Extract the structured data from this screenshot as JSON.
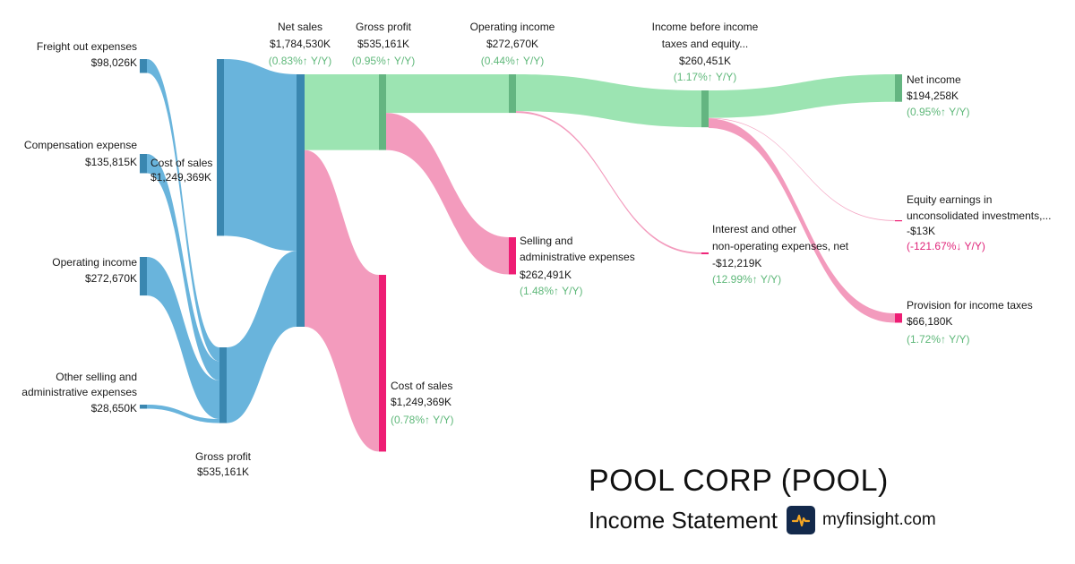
{
  "header": {
    "company": "POOL CORP (POOL)",
    "statement": "Income Statement",
    "brand": "myfinsight.com",
    "brand_icon": "pulse-line-icon"
  },
  "colors": {
    "revenue_blue": "#69b4dc",
    "revenue_blue_dark": "#3a87b0",
    "profit_green": "#9ce4b2",
    "profit_green_dark": "#64b581",
    "cost_pink": "#f39bbd",
    "cost_pink_dark": "#ee1d74",
    "yoy_up": "#5fb87a",
    "yoy_down": "#e0257a"
  },
  "chart_data": {
    "type": "sankey",
    "units": "USD thousands",
    "nodes": [
      {
        "id": "freight",
        "name": "Freight out expenses",
        "value_label": "$98,026K",
        "value": 98026
      },
      {
        "id": "comp",
        "name": "Compensation expense",
        "value_label": "$135,815K",
        "value": 135815
      },
      {
        "id": "opinc_in",
        "name": "Operating income",
        "value_label": "$272,670K",
        "value": 272670
      },
      {
        "id": "osga_in",
        "name": "Other selling and administrative expenses",
        "value_label": "$28,650K",
        "value": 28650
      },
      {
        "id": "cos_in",
        "name": "Cost of sales",
        "value_label": "$1,249,369K",
        "value": 1249369
      },
      {
        "id": "gp_in",
        "name": "Gross profit",
        "value_label": "$535,161K",
        "value": 535161
      },
      {
        "id": "netsales",
        "name": "Net sales",
        "value_label": "$1,784,530K",
        "value": 1784530,
        "yoy": "(0.83%↑ Y/Y)",
        "yoy_dir": "up"
      },
      {
        "id": "gp",
        "name": "Gross profit",
        "value_label": "$535,161K",
        "value": 535161,
        "yoy": "(0.95%↑ Y/Y)",
        "yoy_dir": "up"
      },
      {
        "id": "cos",
        "name": "Cost of sales",
        "value_label": "$1,249,369K",
        "value": 1249369,
        "yoy": "(0.78%↑ Y/Y)",
        "yoy_dir": "up"
      },
      {
        "id": "opinc",
        "name": "Operating income",
        "value_label": "$272,670K",
        "value": 272670,
        "yoy": "(0.44%↑ Y/Y)",
        "yoy_dir": "up"
      },
      {
        "id": "sga",
        "name": "Selling and administrative expenses",
        "value_label": "$262,491K",
        "value": 262491,
        "yoy": "(1.48%↑ Y/Y)",
        "yoy_dir": "up"
      },
      {
        "id": "ibt",
        "name": "Income before income taxes and equity...",
        "value_label": "$260,451K",
        "value": 260451,
        "yoy": "(1.17%↑ Y/Y)",
        "yoy_dir": "up"
      },
      {
        "id": "interest",
        "name": "Interest and other non-operating expenses, net",
        "value_label": "-$12,219K",
        "value": -12219,
        "yoy": "(12.99%↑ Y/Y)",
        "yoy_dir": "up"
      },
      {
        "id": "netinc",
        "name": "Net income",
        "value_label": "$194,258K",
        "value": 194258,
        "yoy": "(0.95%↑ Y/Y)",
        "yoy_dir": "up"
      },
      {
        "id": "equity",
        "name": "Equity earnings in unconsolidated investments,...",
        "value_label": "-$13K",
        "value": -13,
        "yoy": "(-121.67%↓ Y/Y)",
        "yoy_dir": "down"
      },
      {
        "id": "tax",
        "name": "Provision for income taxes",
        "value_label": "$66,180K",
        "value": 66180,
        "yoy": "(1.72%↑ Y/Y)",
        "yoy_dir": "up"
      }
    ],
    "links": [
      {
        "source": "freight",
        "target": "gp_in",
        "value": 98026
      },
      {
        "source": "comp",
        "target": "gp_in",
        "value": 135815
      },
      {
        "source": "opinc_in",
        "target": "gp_in",
        "value": 272670
      },
      {
        "source": "osga_in",
        "target": "gp_in",
        "value": 28650
      },
      {
        "source": "cos_in",
        "target": "netsales",
        "value": 1249369
      },
      {
        "source": "gp_in",
        "target": "netsales",
        "value": 535161
      },
      {
        "source": "netsales",
        "target": "gp",
        "value": 535161
      },
      {
        "source": "netsales",
        "target": "cos",
        "value": 1249369
      },
      {
        "source": "gp",
        "target": "opinc",
        "value": 272670
      },
      {
        "source": "gp",
        "target": "sga",
        "value": 262491
      },
      {
        "source": "opinc",
        "target": "ibt",
        "value": 260451
      },
      {
        "source": "opinc",
        "target": "interest",
        "value": 12219
      },
      {
        "source": "ibt",
        "target": "netinc",
        "value": 194258
      },
      {
        "source": "ibt",
        "target": "equity",
        "value": 13
      },
      {
        "source": "ibt",
        "target": "tax",
        "value": 66180
      }
    ]
  }
}
